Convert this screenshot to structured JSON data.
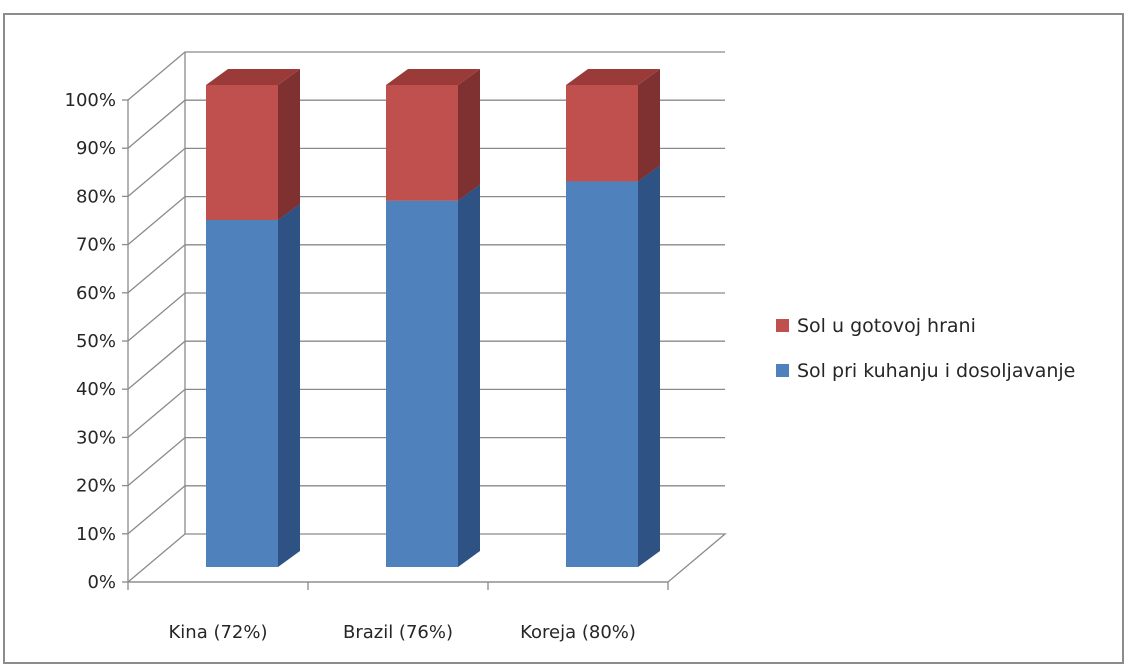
{
  "chart_data": {
    "type": "bar",
    "stacked": true,
    "percent_stacked": true,
    "three_d": true,
    "categories": [
      "Kina (72%)",
      "Brazil (76%)",
      "Koreja (80%)"
    ],
    "series": [
      {
        "name": "Sol pri kuhanju i dosoljavanje",
        "values": [
          72,
          76,
          80
        ],
        "color": "#4f81bd",
        "side_color": "#2e5283",
        "top_color": "#3f6aa3"
      },
      {
        "name": "Sol u gotovoj hrani",
        "values": [
          28,
          24,
          20
        ],
        "color": "#c0504d",
        "side_color": "#7e3130",
        "top_color": "#9a3b39"
      }
    ],
    "ylim": [
      0,
      100
    ],
    "y_ticks": [
      "0%",
      "10%",
      "20%",
      "30%",
      "40%",
      "50%",
      "60%",
      "70%",
      "80%",
      "90%",
      "100%"
    ],
    "legend": {
      "placement": "right",
      "items": [
        "Sol u gotovoj hrani",
        "Sol pri kuhanju i dosoljavanje"
      ]
    },
    "grid": true
  }
}
